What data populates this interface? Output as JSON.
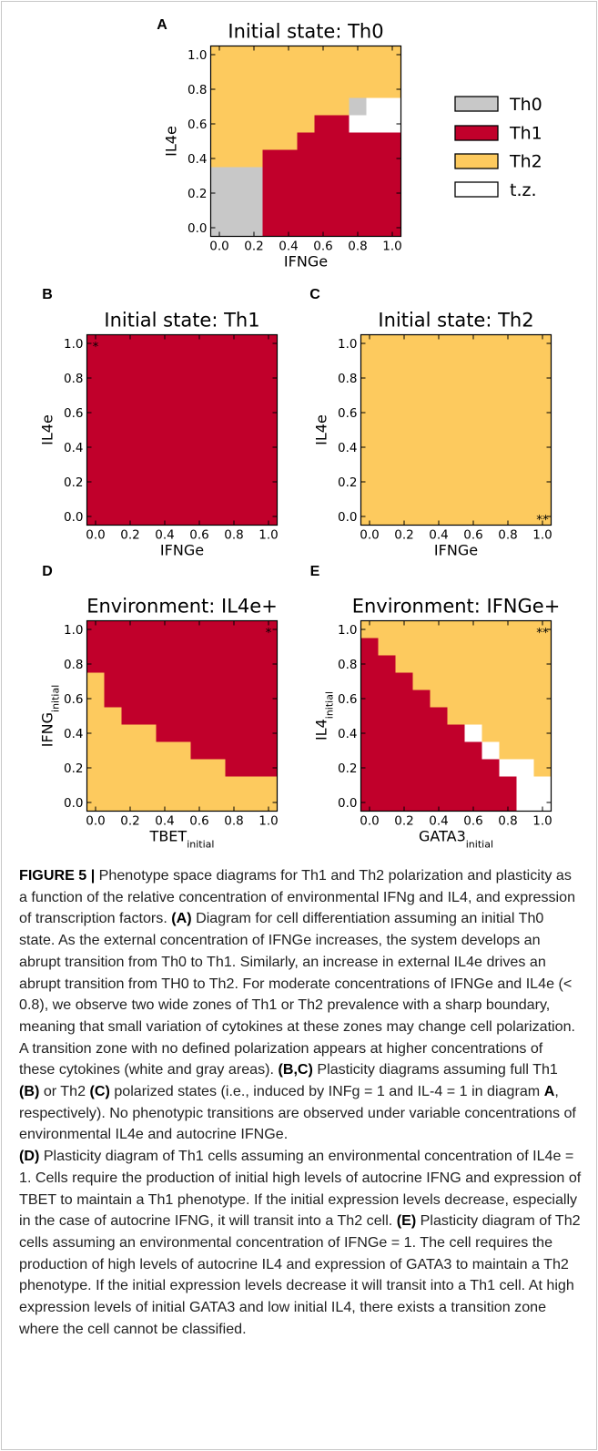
{
  "figure": {
    "panels": [
      {
        "letter": "A",
        "title": "Initial state: Th0",
        "x_label": {
          "text": "IFNGe"
        },
        "y_label": {
          "text": "IL4e"
        },
        "x_ticks": [
          "0.0",
          "0.2",
          "0.4",
          "0.6",
          "0.8",
          "1.0"
        ],
        "y_ticks": [
          "0.0",
          "0.2",
          "0.4",
          "0.6",
          "0.8",
          "1.0"
        ]
      },
      {
        "letter": "B",
        "title": "Initial state: Th1",
        "x_label": {
          "text": "IFNGe"
        },
        "y_label": {
          "text": "IL4e"
        },
        "x_ticks": [
          "0.0",
          "0.2",
          "0.4",
          "0.6",
          "0.8",
          "1.0"
        ],
        "y_ticks": [
          "0.0",
          "0.2",
          "0.4",
          "0.6",
          "0.8",
          "1.0"
        ],
        "marker": "*"
      },
      {
        "letter": "C",
        "title": "Initial state: Th2",
        "x_label": {
          "text": "IFNGe"
        },
        "y_label": {
          "text": "IL4e"
        },
        "x_ticks": [
          "0.0",
          "0.2",
          "0.4",
          "0.6",
          "0.8",
          "1.0"
        ],
        "y_ticks": [
          "0.0",
          "0.2",
          "0.4",
          "0.6",
          "0.8",
          "1.0"
        ],
        "marker": "**"
      },
      {
        "letter": "D",
        "title": "Environment: IL4e+",
        "x_label": {
          "text": "TBET",
          "sub": "initial"
        },
        "y_label": {
          "text": "IFNG",
          "sub": "initial"
        },
        "x_ticks": [
          "0.0",
          "0.2",
          "0.4",
          "0.6",
          "0.8",
          "1.0"
        ],
        "y_ticks": [
          "0.0",
          "0.2",
          "0.4",
          "0.6",
          "0.8",
          "1.0"
        ],
        "marker": "*"
      },
      {
        "letter": "E",
        "title": "Environment: IFNGe+",
        "x_label": {
          "text": "GATA3",
          "sub": "initial"
        },
        "y_label": {
          "text": "IL4",
          "sub": "initial"
        },
        "x_ticks": [
          "0.0",
          "0.2",
          "0.4",
          "0.6",
          "0.8",
          "1.0"
        ],
        "y_ticks": [
          "0.0",
          "0.2",
          "0.4",
          "0.6",
          "0.8",
          "1.0"
        ],
        "marker": "**"
      }
    ],
    "legend": [
      "Th0",
      "Th1",
      "Th2",
      "t.z."
    ]
  },
  "caption": {
    "paragraphs": [
      [
        {
          "text": "FIGURE 5 |",
          "bold": true
        },
        {
          "text": " Phenotype space diagrams for Th1 and Th2 polarization and plasticity as a function of the relative concentration of environmental IFNg and IL4, and expression of transcription factors. ",
          "bold": false
        },
        {
          "text": "(A)",
          "bold": true
        },
        {
          "text": " Diagram for cell differentiation assuming an initial Th0 state. As the external concentration of IFNGe increases, the system develops an abrupt transition from Th0 to Th1. Similarly, an increase in external IL4e drives an abrupt transition from TH0 to Th2. For moderate concentrations of IFNGe and IL4e (< 0.8), we observe two wide zones of Th1 or Th2 prevalence with a sharp boundary, meaning that small variation of cytokines at these zones may change cell polarization. A transition zone with no defined polarization appears at higher concentrations of these cytokines (white and gray areas). ",
          "bold": false
        },
        {
          "text": "(B,C)",
          "bold": true
        },
        {
          "text": " Plasticity diagrams assuming full Th1 ",
          "bold": false
        },
        {
          "text": "(B)",
          "bold": true
        },
        {
          "text": " or Th2 ",
          "bold": false
        },
        {
          "text": "(C)",
          "bold": true
        },
        {
          "text": " polarized states (i.e., induced by INFg = 1 and IL-4 = 1 in diagram ",
          "bold": false
        },
        {
          "text": "A",
          "bold": true
        },
        {
          "text": ", respectively). No phenotypic transitions are observed under variable concentrations of environmental IL4e and autocrine IFNGe.",
          "bold": false
        }
      ],
      [
        {
          "text": "(D)",
          "bold": true
        },
        {
          "text": " Plasticity diagram of Th1 cells assuming an environmental concentration of IL4e = 1. Cells require the production of initial high levels of autocrine IFNG and expression of TBET to maintain a Th1 phenotype. If the initial expression levels decrease, especially in the case of autocrine IFNG, it will transit into a Th2 cell. ",
          "bold": false
        },
        {
          "text": "(E)",
          "bold": true
        },
        {
          "text": " Plasticity diagram of Th2 cells assuming an environmental concentration of IFNGe = 1. The cell requires the production of high levels of autocrine IL4 and expression of GATA3 to maintain a Th2 phenotype. If the initial expression levels decrease it will transit into a Th1 cell. At high expression levels of initial GATA3 and low initial IL4, there exists a transition zone where the cell cannot be classified.",
          "bold": false
        }
      ]
    ]
  }
}
